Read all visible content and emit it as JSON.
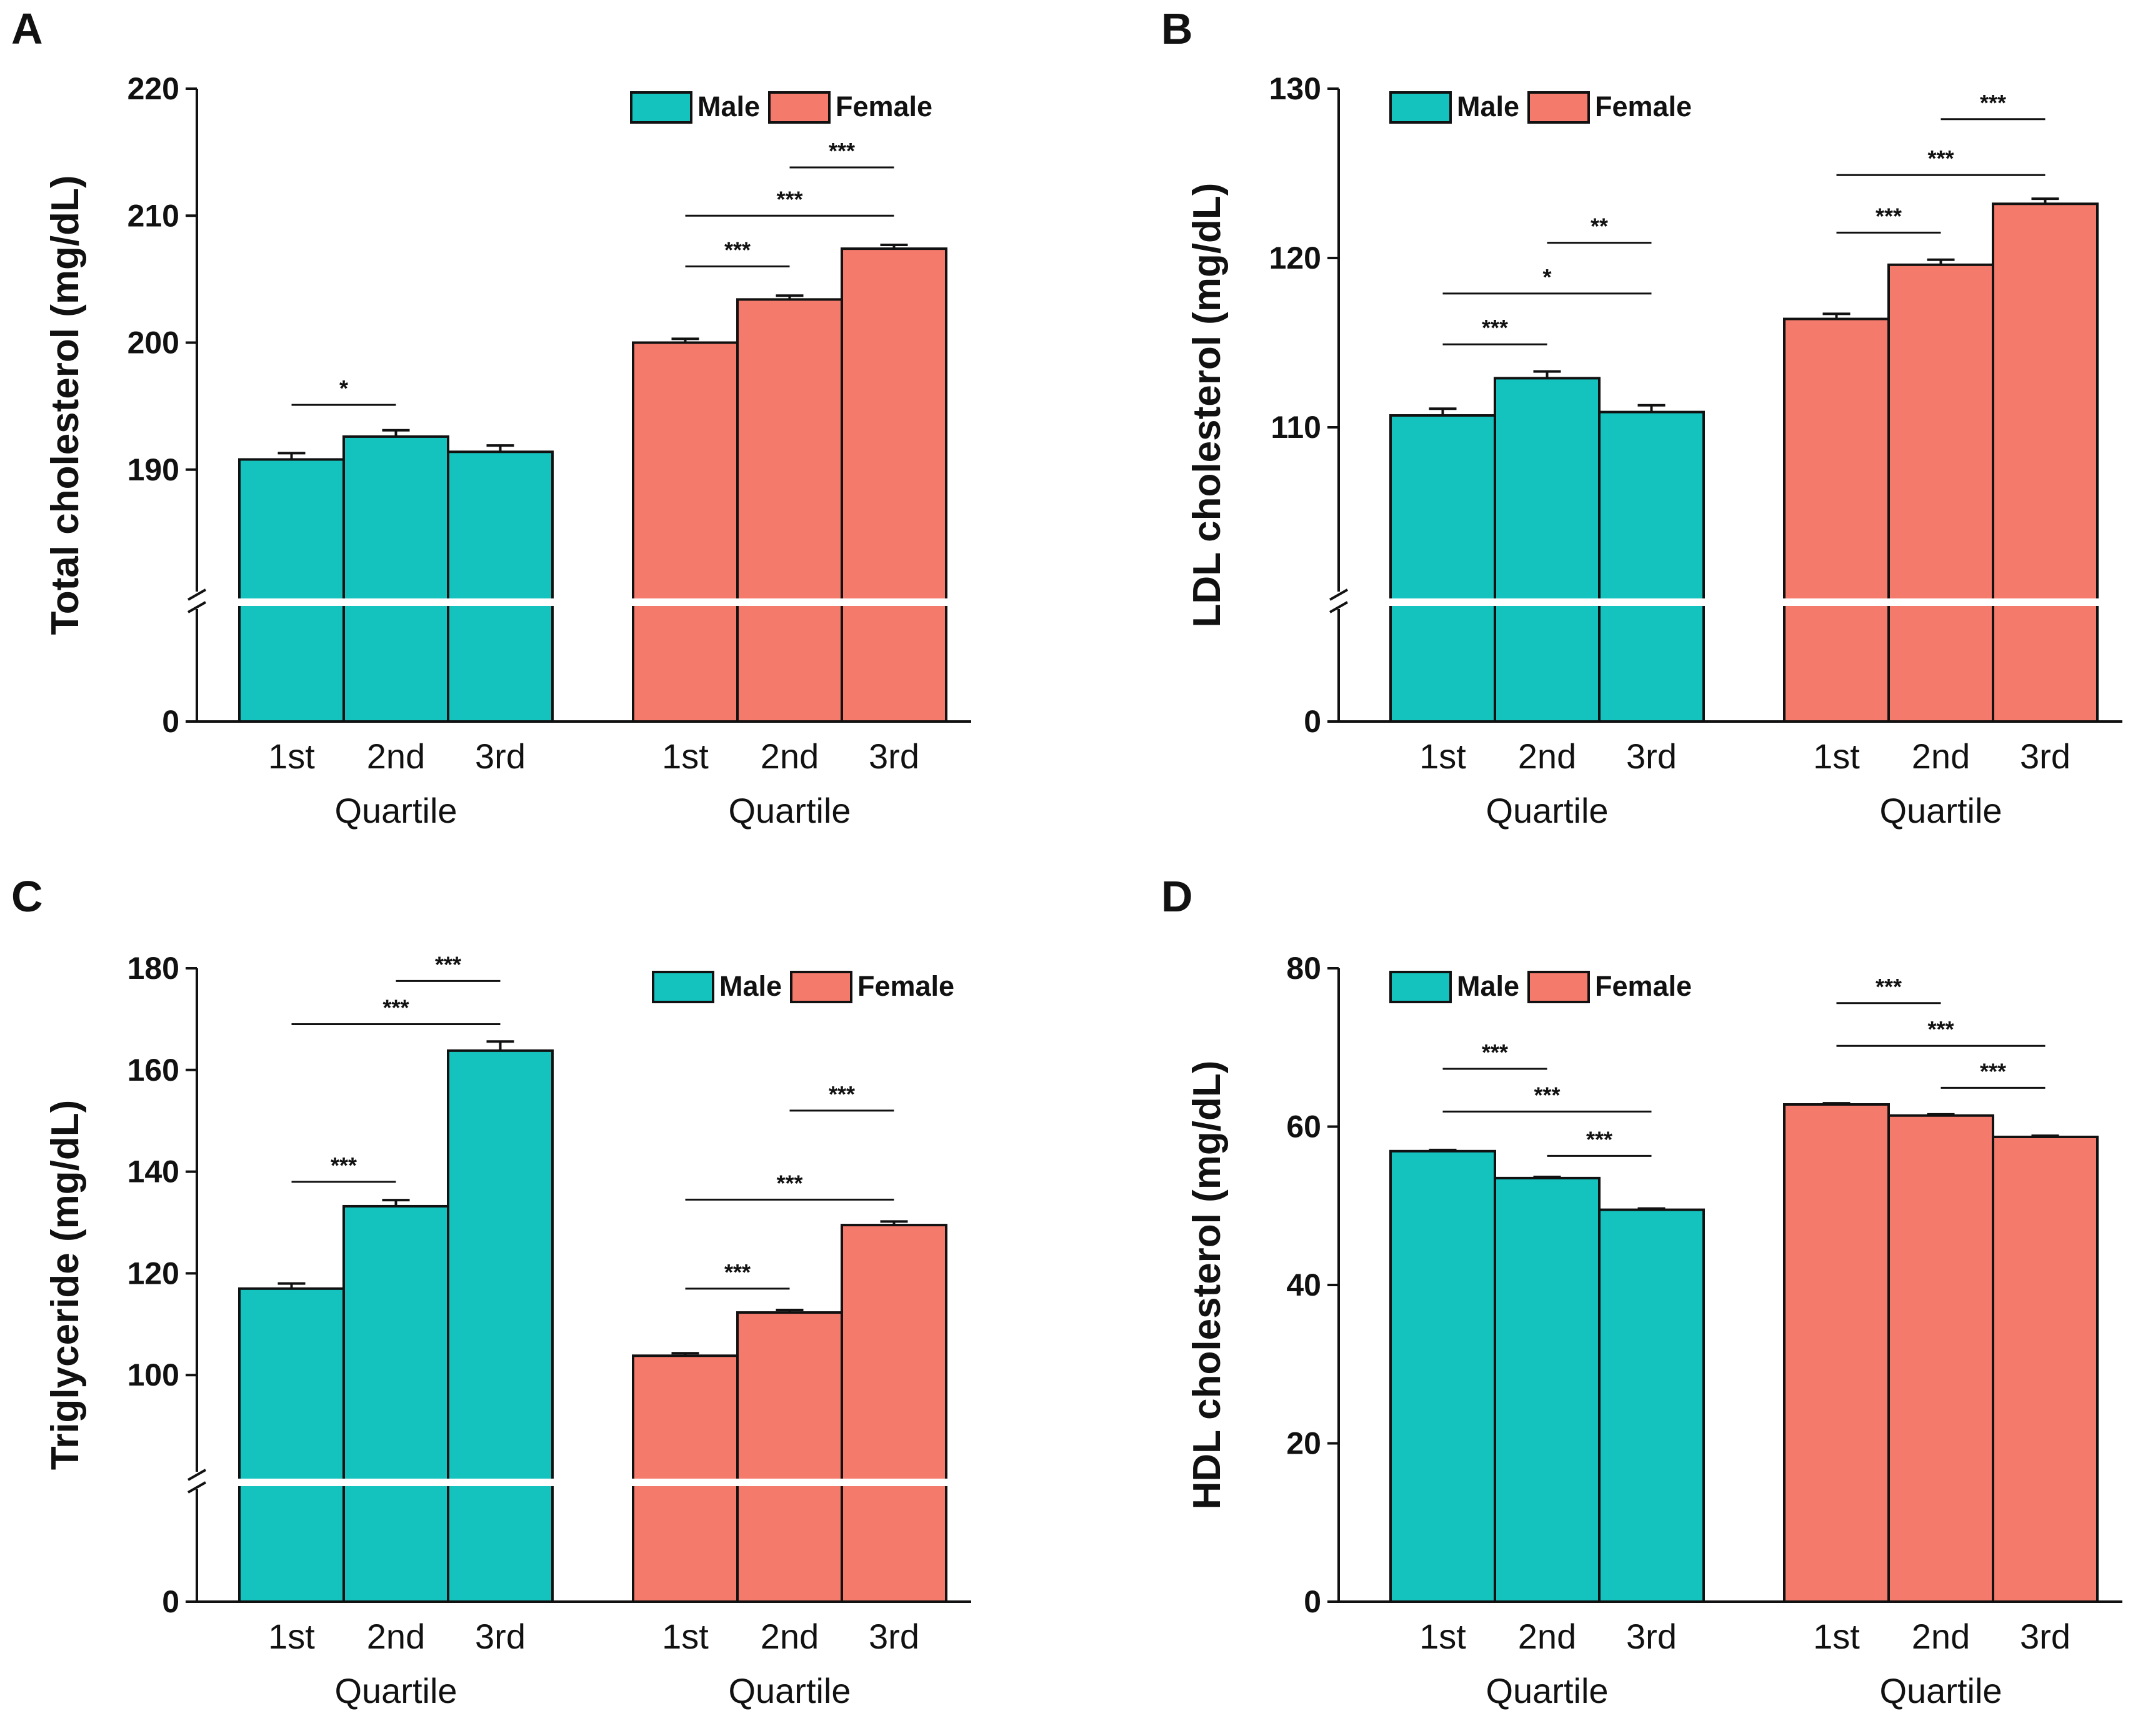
{
  "figure": {
    "colors": {
      "male": "#14C2BE",
      "female": "#F47A6C",
      "axis": "#111111",
      "break": "#FFFFFF"
    },
    "legend": {
      "male": "Male",
      "female": "Female"
    }
  },
  "chart_data": [
    {
      "panel": "A",
      "type": "bar",
      "ylabel": "Total cholesterol (mg/dL)",
      "xlabel": "Quartile",
      "groups": [
        "Male",
        "Female"
      ],
      "categories": [
        "1st",
        "2nd",
        "3rd"
      ],
      "axis_break": true,
      "ylim": [
        180,
        220
      ],
      "yticks": [
        190,
        200,
        210,
        220
      ],
      "zero_label": "0",
      "series": [
        {
          "name": "Male",
          "values": [
            190.8,
            192.6,
            191.4
          ],
          "errors": [
            0.5,
            0.5,
            0.5
          ]
        },
        {
          "name": "Female",
          "values": [
            200.0,
            203.4,
            207.4
          ],
          "errors": [
            0.3,
            0.3,
            0.3
          ]
        }
      ],
      "significance": [
        {
          "group": "Male",
          "from": 0,
          "to": 1,
          "y": 195.1,
          "label": "*"
        },
        {
          "group": "Female",
          "from": 0,
          "to": 1,
          "y": 206.0,
          "label": "***"
        },
        {
          "group": "Female",
          "from": 0,
          "to": 2,
          "y": 210.0,
          "label": "***"
        },
        {
          "group": "Female",
          "from": 1,
          "to": 2,
          "y": 213.8,
          "label": "***"
        }
      ],
      "legend_position": "top-right"
    },
    {
      "panel": "B",
      "type": "bar",
      "ylabel": "LDL cholesterol (mg/dL)",
      "xlabel": "Quartile",
      "groups": [
        "Male",
        "Female"
      ],
      "categories": [
        "1st",
        "2nd",
        "3rd"
      ],
      "axis_break": true,
      "ylim": [
        100,
        130
      ],
      "yticks": [
        110,
        120,
        130
      ],
      "zero_label": "0",
      "series": [
        {
          "name": "Male",
          "values": [
            110.7,
            112.9,
            110.9
          ],
          "errors": [
            0.4,
            0.4,
            0.4
          ]
        },
        {
          "name": "Female",
          "values": [
            116.4,
            119.6,
            123.2
          ],
          "errors": [
            0.3,
            0.3,
            0.3
          ]
        }
      ],
      "significance": [
        {
          "group": "Male",
          "from": 0,
          "to": 1,
          "y": 114.9,
          "label": "***"
        },
        {
          "group": "Male",
          "from": 0,
          "to": 2,
          "y": 117.9,
          "label": "*"
        },
        {
          "group": "Male",
          "from": 1,
          "to": 2,
          "y": 120.9,
          "label": "**"
        },
        {
          "group": "Female",
          "from": 0,
          "to": 1,
          "y": 121.5,
          "label": "***"
        },
        {
          "group": "Female",
          "from": 0,
          "to": 2,
          "y": 124.9,
          "label": "***"
        },
        {
          "group": "Female",
          "from": 1,
          "to": 2,
          "y": 128.2,
          "label": "***"
        }
      ],
      "legend_position": "top-left"
    },
    {
      "panel": "C",
      "type": "bar",
      "ylabel": "Triglyceride (mg/dL)",
      "xlabel": "Quartile",
      "groups": [
        "Male",
        "Female"
      ],
      "categories": [
        "1st",
        "2nd",
        "3rd"
      ],
      "axis_break": true,
      "ylim": [
        80,
        180
      ],
      "yticks": [
        100,
        120,
        140,
        160,
        180
      ],
      "zero_label": "0",
      "series": [
        {
          "name": "Male",
          "values": [
            117.0,
            133.2,
            163.8
          ],
          "errors": [
            1.0,
            1.2,
            1.8
          ]
        },
        {
          "name": "Female",
          "values": [
            103.8,
            112.3,
            129.5
          ],
          "errors": [
            0.5,
            0.5,
            0.7
          ]
        }
      ],
      "significance": [
        {
          "group": "Male",
          "from": 0,
          "to": 1,
          "y": 138.0,
          "label": "***"
        },
        {
          "group": "Male",
          "from": 0,
          "to": 2,
          "y": 169.0,
          "label": "***"
        },
        {
          "group": "Male",
          "from": 1,
          "to": 2,
          "y": 177.5,
          "label": "***"
        },
        {
          "group": "Female",
          "from": 0,
          "to": 1,
          "y": 117.0,
          "label": "***"
        },
        {
          "group": "Female",
          "from": 0,
          "to": 2,
          "y": 134.5,
          "label": "***"
        },
        {
          "group": "Female",
          "from": 1,
          "to": 2,
          "y": 152.0,
          "label": "***"
        }
      ],
      "legend_position": "top-right"
    },
    {
      "panel": "D",
      "type": "bar",
      "ylabel": "HDL cholesterol (mg/dL)",
      "xlabel": "Quartile",
      "groups": [
        "Male",
        "Female"
      ],
      "categories": [
        "1st",
        "2nd",
        "3rd"
      ],
      "axis_break": false,
      "ylim": [
        0,
        80
      ],
      "yticks": [
        0,
        20,
        40,
        60,
        80
      ],
      "series": [
        {
          "name": "Male",
          "values": [
            56.9,
            53.5,
            49.5
          ],
          "errors": [
            0.15,
            0.15,
            0.15
          ]
        },
        {
          "name": "Female",
          "values": [
            62.8,
            61.4,
            58.7
          ],
          "errors": [
            0.15,
            0.15,
            0.15
          ]
        }
      ],
      "significance": [
        {
          "group": "Male",
          "from": 0,
          "to": 1,
          "y": 67.3,
          "label": "***"
        },
        {
          "group": "Male",
          "from": 0,
          "to": 2,
          "y": 61.9,
          "label": "***"
        },
        {
          "group": "Male",
          "from": 1,
          "to": 2,
          "y": 56.3,
          "label": "***"
        },
        {
          "group": "Female",
          "from": 0,
          "to": 1,
          "y": 75.6,
          "label": "***"
        },
        {
          "group": "Female",
          "from": 0,
          "to": 2,
          "y": 70.2,
          "label": "***"
        },
        {
          "group": "Female",
          "from": 1,
          "to": 2,
          "y": 64.9,
          "label": "***"
        }
      ],
      "legend_position": "top-left"
    }
  ]
}
